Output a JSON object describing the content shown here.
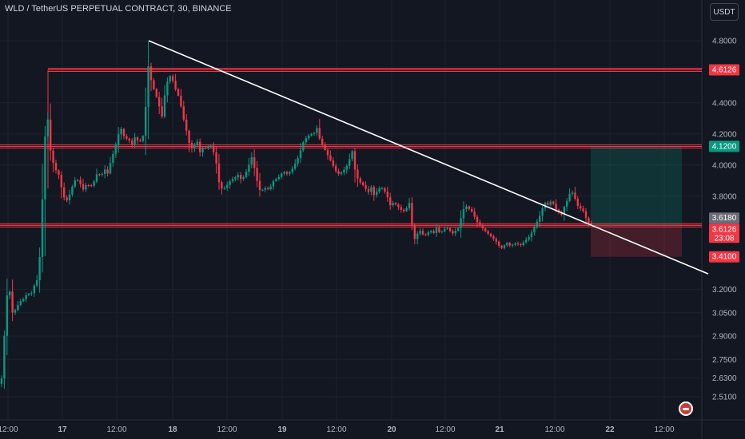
{
  "title": "WLD / TetherUS PERPETUAL CONTRACT, 30, BINANCE",
  "currency": "USDT",
  "chart_data": {
    "type": "candlestick",
    "ylim": [
      2.44,
      4.92
    ],
    "x_tick_labels": [
      "12:00",
      "17",
      "12:00",
      "18",
      "12:00",
      "19",
      "12:00",
      "20",
      "12:00",
      "21",
      "12:00",
      "22",
      "12:00"
    ],
    "y_tick_labels": [
      "4.8000",
      "4.4000",
      "4.2000",
      "4.0000",
      "3.8000",
      "3.2000",
      "3.0500",
      "2.9000",
      "2.7500",
      "2.6300",
      "2.5100"
    ],
    "y_tick_values": [
      4.8,
      4.4,
      4.2,
      4.0,
      3.8,
      3.2,
      3.05,
      2.9,
      2.75,
      2.63,
      2.51
    ],
    "price_path": [
      [
        0,
        2.59
      ],
      [
        4,
        2.63
      ],
      [
        8,
        2.98
      ],
      [
        12,
        3.27
      ],
      [
        17,
        3.05
      ],
      [
        20,
        3.06
      ],
      [
        26,
        3.12
      ],
      [
        32,
        3.14
      ],
      [
        36,
        3.18
      ],
      [
        40,
        3.16
      ],
      [
        44,
        3.22
      ],
      [
        48,
        3.26
      ],
      [
        50,
        3.3
      ],
      [
        53,
        3.55
      ],
      [
        55,
        3.82
      ],
      [
        57,
        4.1
      ],
      [
        60,
        4.33
      ],
      [
        62,
        4.28
      ],
      [
        64,
        4.12
      ],
      [
        66,
        4.06
      ],
      [
        70,
        3.98
      ],
      [
        75,
        3.94
      ],
      [
        80,
        3.82
      ],
      [
        84,
        3.76
      ],
      [
        88,
        3.8
      ],
      [
        92,
        3.86
      ],
      [
        97,
        3.92
      ],
      [
        102,
        3.88
      ],
      [
        106,
        3.84
      ],
      [
        110,
        3.88
      ],
      [
        115,
        3.86
      ],
      [
        120,
        3.9
      ],
      [
        124,
        3.96
      ],
      [
        128,
        3.92
      ],
      [
        132,
        3.98
      ],
      [
        136,
        3.94
      ],
      [
        140,
        4.02
      ],
      [
        146,
        4.12
      ],
      [
        150,
        4.2
      ],
      [
        154,
        4.24
      ],
      [
        158,
        4.16
      ],
      [
        162,
        4.18
      ],
      [
        166,
        4.12
      ],
      [
        170,
        4.18
      ],
      [
        175,
        4.15
      ],
      [
        180,
        4.16
      ],
      [
        184,
        4.38
      ],
      [
        186,
        4.7
      ],
      [
        188,
        4.6
      ],
      [
        190,
        4.56
      ],
      [
        192,
        4.52
      ],
      [
        196,
        4.46
      ],
      [
        200,
        4.4
      ],
      [
        204,
        4.3
      ],
      [
        208,
        4.46
      ],
      [
        212,
        4.56
      ],
      [
        216,
        4.58
      ],
      [
        220,
        4.5
      ],
      [
        224,
        4.46
      ],
      [
        228,
        4.38
      ],
      [
        232,
        4.28
      ],
      [
        236,
        4.2
      ],
      [
        240,
        4.1
      ],
      [
        244,
        4.12
      ],
      [
        248,
        4.16
      ],
      [
        252,
        4.08
      ],
      [
        256,
        4.12
      ],
      [
        260,
        4.1
      ],
      [
        264,
        4.14
      ],
      [
        268,
        4.1
      ],
      [
        272,
        4.02
      ],
      [
        276,
        3.88
      ],
      [
        280,
        3.84
      ],
      [
        284,
        3.86
      ],
      [
        290,
        3.9
      ],
      [
        296,
        3.92
      ],
      [
        300,
        3.94
      ],
      [
        304,
        3.9
      ],
      [
        308,
        3.94
      ],
      [
        312,
        3.98
      ],
      [
        316,
        4.06
      ],
      [
        320,
        3.98
      ],
      [
        324,
        3.88
      ],
      [
        328,
        3.82
      ],
      [
        332,
        3.86
      ],
      [
        336,
        3.84
      ],
      [
        340,
        3.86
      ],
      [
        344,
        3.9
      ],
      [
        350,
        3.92
      ],
      [
        356,
        3.96
      ],
      [
        362,
        3.94
      ],
      [
        368,
        3.98
      ],
      [
        374,
        4.04
      ],
      [
        378,
        4.1
      ],
      [
        382,
        4.16
      ],
      [
        386,
        4.18
      ],
      [
        390,
        4.2
      ],
      [
        394,
        4.2
      ],
      [
        398,
        4.24
      ],
      [
        402,
        4.16
      ],
      [
        406,
        4.12
      ],
      [
        410,
        4.08
      ],
      [
        414,
        4.04
      ],
      [
        418,
        4.0
      ],
      [
        422,
        3.96
      ],
      [
        426,
        3.94
      ],
      [
        430,
        3.96
      ],
      [
        434,
        3.98
      ],
      [
        438,
        4.02
      ],
      [
        442,
        4.1
      ],
      [
        446,
        3.96
      ],
      [
        450,
        3.9
      ],
      [
        454,
        3.88
      ],
      [
        458,
        3.86
      ],
      [
        462,
        3.82
      ],
      [
        466,
        3.86
      ],
      [
        470,
        3.8
      ],
      [
        474,
        3.84
      ],
      [
        478,
        3.86
      ],
      [
        482,
        3.84
      ],
      [
        486,
        3.8
      ],
      [
        490,
        3.74
      ],
      [
        494,
        3.76
      ],
      [
        498,
        3.74
      ],
      [
        502,
        3.72
      ],
      [
        506,
        3.7
      ],
      [
        510,
        3.72
      ],
      [
        514,
        3.76
      ],
      [
        517,
        3.62
      ],
      [
        520,
        3.52
      ],
      [
        524,
        3.56
      ],
      [
        528,
        3.58
      ],
      [
        532,
        3.54
      ],
      [
        536,
        3.56
      ],
      [
        540,
        3.58
      ],
      [
        544,
        3.56
      ],
      [
        548,
        3.6
      ],
      [
        552,
        3.56
      ],
      [
        556,
        3.58
      ],
      [
        560,
        3.6
      ],
      [
        564,
        3.58
      ],
      [
        568,
        3.56
      ],
      [
        572,
        3.58
      ],
      [
        576,
        3.6
      ],
      [
        580,
        3.7
      ],
      [
        584,
        3.74
      ],
      [
        588,
        3.72
      ],
      [
        592,
        3.7
      ],
      [
        596,
        3.66
      ],
      [
        600,
        3.62
      ],
      [
        604,
        3.6
      ],
      [
        608,
        3.58
      ],
      [
        612,
        3.56
      ],
      [
        616,
        3.54
      ],
      [
        620,
        3.52
      ],
      [
        624,
        3.5
      ],
      [
        628,
        3.46
      ],
      [
        632,
        3.48
      ],
      [
        636,
        3.5
      ],
      [
        640,
        3.48
      ],
      [
        644,
        3.49
      ],
      [
        648,
        3.5
      ],
      [
        652,
        3.48
      ],
      [
        656,
        3.5
      ],
      [
        660,
        3.52
      ],
      [
        664,
        3.54
      ],
      [
        668,
        3.58
      ],
      [
        672,
        3.62
      ],
      [
        676,
        3.66
      ],
      [
        680,
        3.72
      ],
      [
        684,
        3.76
      ],
      [
        688,
        3.74
      ],
      [
        692,
        3.78
      ],
      [
        696,
        3.72
      ],
      [
        700,
        3.7
      ],
      [
        704,
        3.68
      ],
      [
        708,
        3.74
      ],
      [
        712,
        3.78
      ],
      [
        716,
        3.84
      ],
      [
        720,
        3.8
      ],
      [
        724,
        3.74
      ],
      [
        728,
        3.72
      ],
      [
        732,
        3.7
      ],
      [
        736,
        3.64
      ],
      [
        740,
        3.62
      ]
    ],
    "trendline": {
      "x1": 186,
      "y1": 4.8,
      "x2": 886,
      "y2": 3.3
    },
    "levels": [
      {
        "price": 4.6126,
        "label": "4.6126",
        "color": "#f23645",
        "start_x": 60
      },
      {
        "price": 4.12,
        "label": "4.1200",
        "color": "#f23645",
        "start_x": 0
      },
      {
        "price": 3.6126,
        "label": "3.6126",
        "color": "#f23645",
        "start_x": 0
      }
    ],
    "position": {
      "entry": 3.6126,
      "target": 4.12,
      "stop": 3.41,
      "x1": 739,
      "x2": 853
    },
    "price_tags": [
      {
        "text": "4.6126",
        "bg": "#f23645",
        "price": 4.6126
      },
      {
        "text": "4.1200",
        "bg": "#089981",
        "price": 4.12
      },
      {
        "text": "3.6180",
        "bg": "#6a6d78",
        "price": 3.618
      },
      {
        "text": "3.6126",
        "bg": "#f23645",
        "price": 3.6126,
        "sub": "23:08"
      },
      {
        "text": "3.4100",
        "bg": "#f23645",
        "price": 3.41
      }
    ],
    "colors": {
      "up": "#089981",
      "down": "#f23645",
      "bg": "#131722",
      "grid": "#1e222d",
      "text": "#b2b5be"
    }
  }
}
